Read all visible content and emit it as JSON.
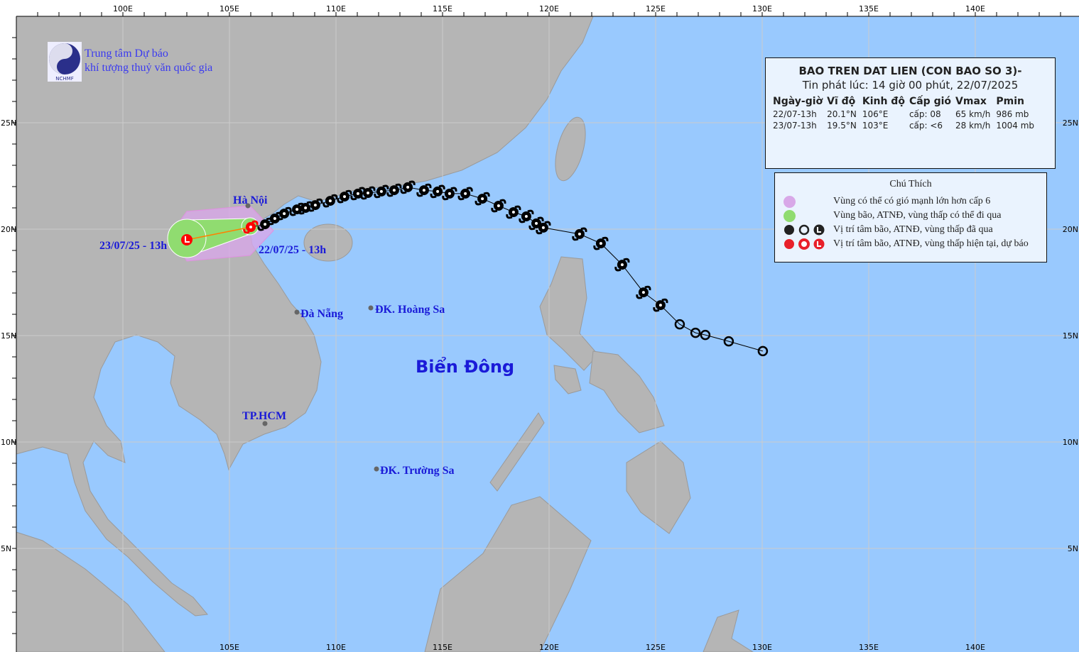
{
  "map": {
    "axes": {
      "top_lon_labels": [
        "100E",
        "105E",
        "110E",
        "115E",
        "120E",
        "125E",
        "130E",
        "135E",
        "140E"
      ],
      "bottom_lon_labels": [
        "105E",
        "110E",
        "115E",
        "120E",
        "125E",
        "130E",
        "135E",
        "140E"
      ],
      "lat_labels": [
        "25N",
        "20N",
        "15N",
        "10N",
        "5N"
      ],
      "lon_range": [
        95,
        144.87
      ],
      "lat_range": [
        0.13,
        30
      ]
    },
    "colors": {
      "sea": "#99c9fe",
      "land": "#b5b5b5",
      "track": "#000000",
      "current": "#ff0000",
      "strong_wind_zone": "#d8a8e8",
      "storm_zone": "#90dc70"
    },
    "places": {
      "hanoi": "Hà Nội",
      "danang": "Đà Nẵng",
      "hoangsa": "ĐK. Hoàng Sa",
      "hcm": "TP.HCM",
      "truongsa": "ĐK. Trường Sa",
      "bien_dong": "Biển Đông"
    },
    "date_labels": {
      "forecast": "23/07/25 - 13h",
      "current": "22/07/25 - 13h"
    },
    "past_track": [
      {
        "lon": 130.03,
        "lat": 14.27,
        "type": "low"
      },
      {
        "lon": 128.43,
        "lat": 14.73,
        "type": "low"
      },
      {
        "lon": 127.33,
        "lat": 15.03,
        "type": "low"
      },
      {
        "lon": 126.87,
        "lat": 15.13,
        "type": "low"
      },
      {
        "lon": 126.13,
        "lat": 15.53,
        "type": "low"
      },
      {
        "lon": 125.23,
        "lat": 16.43,
        "type": "storm"
      },
      {
        "lon": 124.43,
        "lat": 17.03,
        "type": "storm"
      },
      {
        "lon": 123.43,
        "lat": 18.33,
        "type": "storm"
      },
      {
        "lon": 122.43,
        "lat": 19.33,
        "type": "storm"
      },
      {
        "lon": 121.43,
        "lat": 19.77,
        "type": "storm"
      },
      {
        "lon": 119.73,
        "lat": 20.07,
        "type": "storm"
      },
      {
        "lon": 119.4,
        "lat": 20.27,
        "type": "storm"
      },
      {
        "lon": 118.93,
        "lat": 20.6,
        "type": "storm"
      },
      {
        "lon": 118.33,
        "lat": 20.8,
        "type": "storm"
      },
      {
        "lon": 117.63,
        "lat": 21.1,
        "type": "storm"
      },
      {
        "lon": 116.87,
        "lat": 21.43,
        "type": "storm"
      },
      {
        "lon": 116.07,
        "lat": 21.67,
        "type": "storm"
      },
      {
        "lon": 115.33,
        "lat": 21.67,
        "type": "storm"
      },
      {
        "lon": 114.77,
        "lat": 21.77,
        "type": "storm"
      },
      {
        "lon": 114.13,
        "lat": 21.83,
        "type": "storm"
      },
      {
        "lon": 113.37,
        "lat": 21.97,
        "type": "storm"
      },
      {
        "lon": 112.73,
        "lat": 21.83,
        "type": "storm"
      },
      {
        "lon": 112.13,
        "lat": 21.77,
        "type": "storm"
      },
      {
        "lon": 111.5,
        "lat": 21.7,
        "type": "storm"
      },
      {
        "lon": 111.03,
        "lat": 21.67,
        "type": "storm"
      },
      {
        "lon": 110.4,
        "lat": 21.53,
        "type": "storm"
      },
      {
        "lon": 109.73,
        "lat": 21.33,
        "type": "storm"
      },
      {
        "lon": 109.03,
        "lat": 21.13,
        "type": "storm"
      },
      {
        "lon": 108.57,
        "lat": 21.0,
        "type": "storm"
      },
      {
        "lon": 108.17,
        "lat": 20.93,
        "type": "storm"
      },
      {
        "lon": 107.57,
        "lat": 20.73,
        "type": "storm"
      },
      {
        "lon": 107.13,
        "lat": 20.5,
        "type": "storm"
      },
      {
        "lon": 106.67,
        "lat": 20.23,
        "type": "storm"
      }
    ],
    "current": {
      "lon": 106.0,
      "lat": 20.1,
      "type": "storm"
    },
    "forecast": [
      {
        "lon": 103.0,
        "lat": 19.5,
        "type": "low"
      }
    ]
  },
  "org": {
    "line1": "Trung tâm Dự báo",
    "line2": "khí tượng thuỷ văn quốc gia",
    "logo_text": "NCHMF"
  },
  "info": {
    "title": "BAO TREN DAT LIEN (CON BAO SO 3)-",
    "issued": "Tin phát lúc: 14 giờ 00 phút, 22/07/2025",
    "headers": [
      "Ngày-giờ",
      "Vĩ độ",
      "Kinh độ",
      "Cấp gió",
      "Vmax",
      "Pmin"
    ],
    "rows": [
      [
        "22/07-13h",
        "20.1°N",
        "106°E",
        "cấp: 08",
        "65 km/h",
        "986 mb"
      ],
      [
        "23/07-13h",
        "19.5°N",
        "103°E",
        "cấp: <6",
        "28 km/h",
        "1004 mb"
      ]
    ]
  },
  "legend": {
    "title": "Chú Thích",
    "items": [
      "Vùng có thể có gió mạnh lớn hơn cấp 6",
      "Vùng bão, ATNĐ, vùng thấp có thể đi qua",
      "Vị trí tâm bão, ATNĐ, vùng thấp đã qua",
      "Vị trí tâm bão, ATNĐ, vùng thấp hiện tại, dự báo"
    ]
  }
}
